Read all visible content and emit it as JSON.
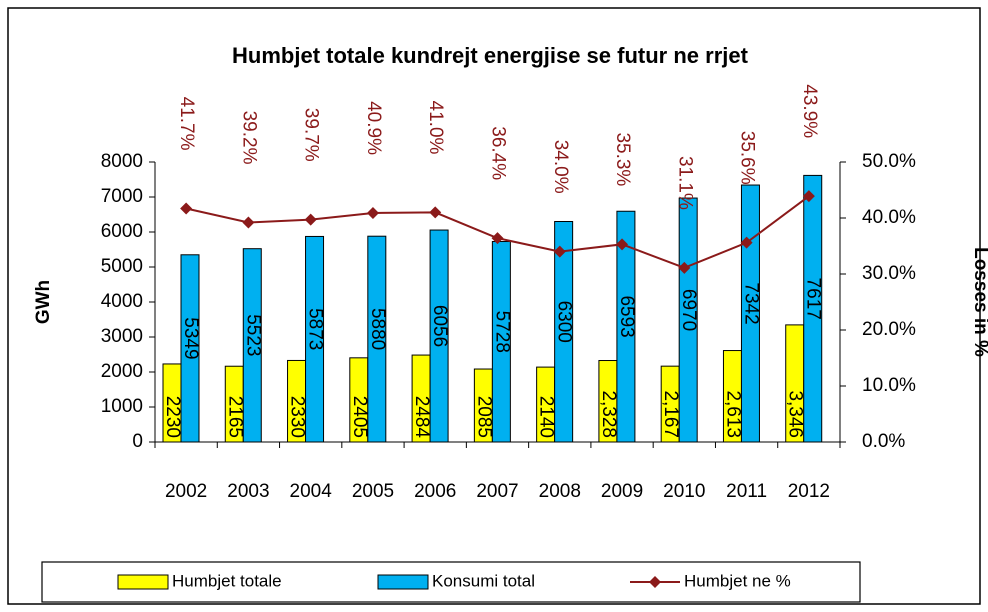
{
  "chart_data": {
    "type": "bar",
    "title": "Humbjet totale kundrejt energjise se futur ne rrjet",
    "y_label": "GWh",
    "y2_label": "Losses in %",
    "categories": [
      "2002",
      "2003",
      "2004",
      "2005",
      "2006",
      "2007",
      "2008",
      "2009",
      "2010",
      "2011",
      "2012"
    ],
    "series": [
      {
        "name": "Humbjet totale",
        "color": "#ffff00",
        "type": "bar",
        "values": [
          2230,
          2165,
          2330,
          2405,
          2484,
          2085,
          2140,
          2328,
          2167,
          2613,
          3346
        ],
        "value_labels": [
          "2230",
          "2165",
          "2330",
          "2405",
          "2484",
          "2085",
          "2140",
          "2,328",
          "2,167",
          "2,613",
          "3,346"
        ]
      },
      {
        "name": "Konsumi total",
        "color": "#00b0f0",
        "type": "bar",
        "values": [
          5349,
          5523,
          5873,
          5880,
          6056,
          5728,
          6300,
          6593,
          6970,
          7342,
          7617
        ]
      },
      {
        "name": "Humbjet ne %",
        "color": "#8b1a1a",
        "type": "line",
        "axis": "y2",
        "values": [
          41.7,
          39.2,
          39.7,
          40.9,
          41.0,
          36.4,
          34.0,
          35.3,
          31.1,
          35.6,
          43.9
        ],
        "value_labels": [
          "41.7%",
          "39.2%",
          "39.7%",
          "40.9%",
          "41.0%",
          "36.4%",
          "34.0%",
          "35.3%",
          "31.1%",
          "35.6%",
          "43.9%"
        ]
      }
    ],
    "ylim": [
      0,
      8000
    ],
    "yticks": [
      0,
      1000,
      2000,
      3000,
      4000,
      5000,
      6000,
      7000,
      8000
    ],
    "y2lim": [
      0,
      50
    ],
    "y2ticks": [
      {
        "value": 0,
        "label": "0.0%"
      },
      {
        "value": 10,
        "label": "10.0%"
      },
      {
        "value": 20,
        "label": "20.0%"
      },
      {
        "value": 30,
        "label": "30.0%"
      },
      {
        "value": 40,
        "label": "40.0%"
      },
      {
        "value": 50,
        "label": "50.0%"
      }
    ],
    "legend": "bottom"
  }
}
